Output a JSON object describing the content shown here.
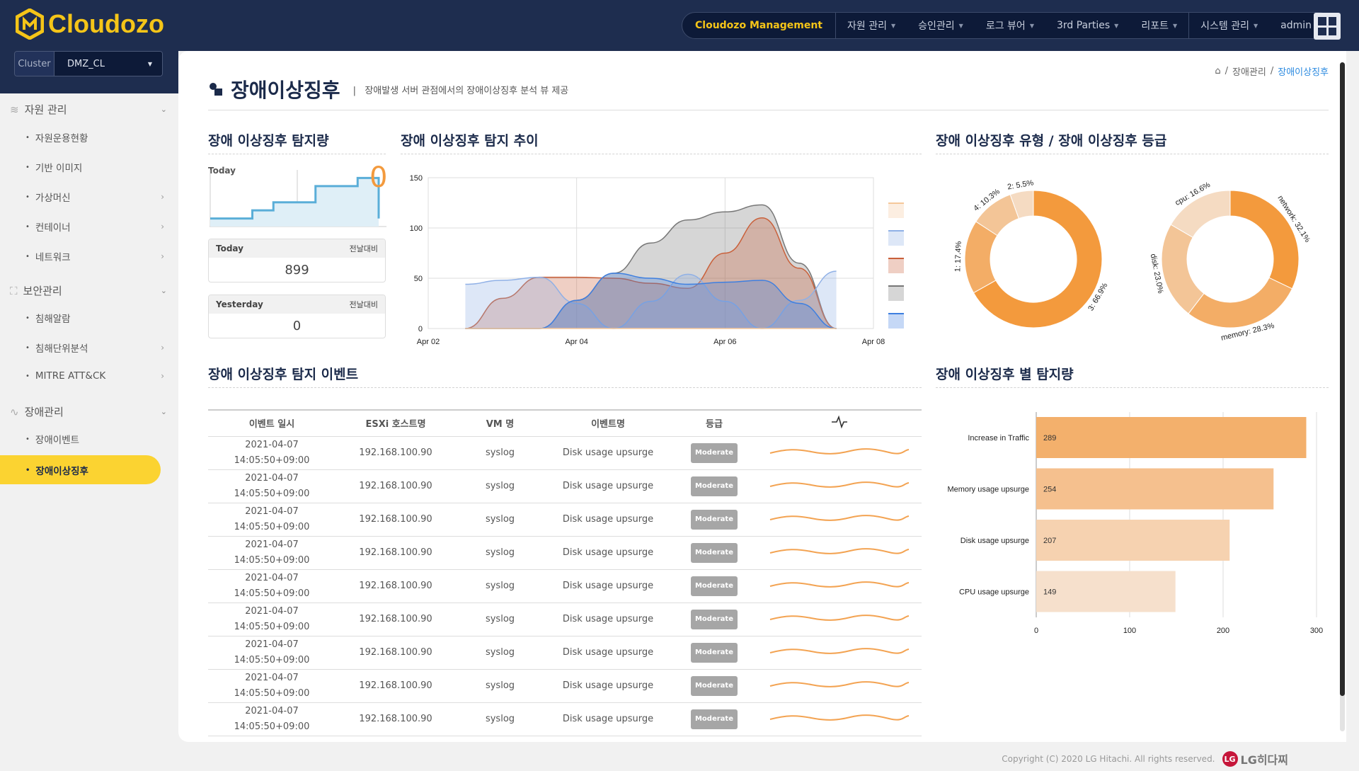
{
  "app": {
    "logo": "Cloudozo",
    "brand_color": "#f5c518",
    "accent": "#fbd331",
    "cluster_label": "Cluster",
    "cluster_value": "DMZ_CL"
  },
  "nav": {
    "items": [
      {
        "label": "Cloudozo Management"
      },
      {
        "label": "자원 관리"
      },
      {
        "label": "승인관리"
      },
      {
        "label": "로그 뷰어"
      },
      {
        "label": "3rd Parties"
      },
      {
        "label": "리포트"
      },
      {
        "label": "시스템 관리"
      },
      {
        "label": "admin"
      }
    ]
  },
  "sidebar": {
    "groups": [
      {
        "label": "자원 관리",
        "icon": "layers-icon",
        "items": [
          {
            "label": "자원운용현황"
          },
          {
            "label": "기반 이미지"
          },
          {
            "label": "가상머신"
          },
          {
            "label": "컨테이너"
          },
          {
            "label": "네트워크"
          }
        ]
      },
      {
        "label": "보안관리",
        "icon": "expand-icon",
        "items": [
          {
            "label": "침해알람"
          },
          {
            "label": "침해단위분석"
          },
          {
            "label": "MITRE ATT&CK"
          }
        ]
      },
      {
        "label": "장애관리",
        "icon": "pulse-icon",
        "items": [
          {
            "label": "장애이벤트"
          },
          {
            "label": "장애이상징후"
          }
        ]
      }
    ]
  },
  "page": {
    "title": "장애이상징후",
    "subtitle": "장애발생 서버 관점에서의 장애이상징후 분석 뷰 제공",
    "breadcrumb": [
      "장애관리",
      "장애이상징후"
    ]
  },
  "detection": {
    "title": "장애 이상징후 탐지량",
    "spark_label": "Today",
    "spark_value": "0",
    "spark_color": "#5aaed8",
    "spark_values": [
      1,
      1,
      2,
      3,
      3,
      5,
      5,
      6,
      1
    ],
    "today": {
      "label": "Today",
      "compare": "전날대비",
      "value": "899"
    },
    "yesterday": {
      "label": "Yesterday",
      "compare": "전날대비",
      "value": "0"
    }
  },
  "trend": {
    "title": "장애 이상징후 탐지 추이"
  },
  "types": {
    "title": "장애 이상징후 유형 / 장애 이상징후 등급"
  },
  "events": {
    "title": "장애 이상징후 탐지 이벤트",
    "columns": [
      "이벤트 일시",
      "ESXi 호스트명",
      "VM 명",
      "이벤트명",
      "등급"
    ],
    "rows": [
      {
        "date": "2021-04-07",
        "time": "14:05:50+09:00",
        "host": "192.168.100.90",
        "vm": "syslog",
        "event": "Disk usage upsurge",
        "grade": "Moderate"
      },
      {
        "date": "2021-04-07",
        "time": "14:05:50+09:00",
        "host": "192.168.100.90",
        "vm": "syslog",
        "event": "Disk usage upsurge",
        "grade": "Moderate"
      },
      {
        "date": "2021-04-07",
        "time": "14:05:50+09:00",
        "host": "192.168.100.90",
        "vm": "syslog",
        "event": "Disk usage upsurge",
        "grade": "Moderate"
      },
      {
        "date": "2021-04-07",
        "time": "14:05:50+09:00",
        "host": "192.168.100.90",
        "vm": "syslog",
        "event": "Disk usage upsurge",
        "grade": "Moderate"
      },
      {
        "date": "2021-04-07",
        "time": "14:05:50+09:00",
        "host": "192.168.100.90",
        "vm": "syslog",
        "event": "Disk usage upsurge",
        "grade": "Moderate"
      },
      {
        "date": "2021-04-07",
        "time": "14:05:50+09:00",
        "host": "192.168.100.90",
        "vm": "syslog",
        "event": "Disk usage upsurge",
        "grade": "Moderate"
      },
      {
        "date": "2021-04-07",
        "time": "14:05:50+09:00",
        "host": "192.168.100.90",
        "vm": "syslog",
        "event": "Disk usage upsurge",
        "grade": "Moderate"
      },
      {
        "date": "2021-04-07",
        "time": "14:05:50+09:00",
        "host": "192.168.100.90",
        "vm": "syslog",
        "event": "Disk usage upsurge",
        "grade": "Moderate"
      },
      {
        "date": "2021-04-07",
        "time": "14:05:50+09:00",
        "host": "192.168.100.90",
        "vm": "syslog",
        "event": "Disk usage upsurge",
        "grade": "Moderate"
      }
    ]
  },
  "bars": {
    "title": "장애 이상징후 별 탐지량"
  },
  "footer": {
    "copyright": "Copyright (C) 2020 LG Hitachi. All rights reserved.",
    "logo": "LG히다찌"
  },
  "chart_data": [
    {
      "type": "area",
      "xlim": [
        "Apr 02",
        "Apr 08"
      ],
      "ylim": [
        0,
        150
      ],
      "yticks": [
        0,
        50,
        100,
        150
      ],
      "xticks": [
        "Apr 02",
        "Apr 04",
        "Apr 06",
        "Apr 08"
      ],
      "grid": true,
      "legend": "right",
      "x": [
        "Apr 02 12:00",
        "Apr 03 00:00",
        "Apr 03 12:00",
        "Apr 04 00:00",
        "Apr 04 12:00",
        "Apr 05 00:00",
        "Apr 05 12:00",
        "Apr 06 00:00",
        "Apr 06 12:00",
        "Apr 07 00:00",
        "Apr 07 12:00"
      ],
      "series": [
        {
          "color": "#f5c89a",
          "values": [
            0,
            0,
            0,
            0,
            0,
            0,
            0,
            0,
            0,
            0,
            0
          ]
        },
        {
          "color": "#8fb0e6",
          "values": [
            44,
            48,
            51,
            25,
            0,
            27,
            54,
            27,
            0,
            28,
            57
          ]
        },
        {
          "color": "#c9603a",
          "values": [
            0,
            30,
            51,
            51,
            50,
            45,
            40,
            75,
            110,
            60,
            0
          ]
        },
        {
          "color": "#777777",
          "values": [
            0,
            0,
            0,
            28,
            55,
            85,
            108,
            116,
            123,
            65,
            0
          ]
        },
        {
          "color": "#3e7fe0",
          "values": [
            0,
            0,
            0,
            28,
            55,
            50,
            44,
            46,
            48,
            25,
            0
          ]
        }
      ]
    },
    {
      "type": "pie",
      "donut": true,
      "labels": [
        "3",
        "1",
        "4",
        "2"
      ],
      "values": [
        66.9,
        17.4,
        10.3,
        5.5
      ],
      "colors": [
        "#f39a3d",
        "#f3ad66",
        "#f3c597",
        "#f5dbc2"
      ]
    },
    {
      "type": "pie",
      "donut": true,
      "labels": [
        "network",
        "memory",
        "disk",
        "cpu"
      ],
      "values": [
        32.1,
        28.3,
        23.0,
        16.6
      ],
      "colors": [
        "#f39a3d",
        "#f3ad66",
        "#f3c597",
        "#f5dbc2"
      ]
    },
    {
      "type": "bar",
      "orientation": "horizontal",
      "categories": [
        "Increase in Traffic",
        "Memory usage upsurge",
        "Disk usage upsurge",
        "CPU usage upsurge"
      ],
      "values": [
        289,
        254,
        207,
        149
      ],
      "xlim": [
        0,
        300
      ],
      "xticks": [
        0,
        100,
        200,
        300
      ],
      "colors": [
        "#f3b06c",
        "#f5c08e",
        "#f6d2b0",
        "#f6e0cc"
      ]
    }
  ]
}
